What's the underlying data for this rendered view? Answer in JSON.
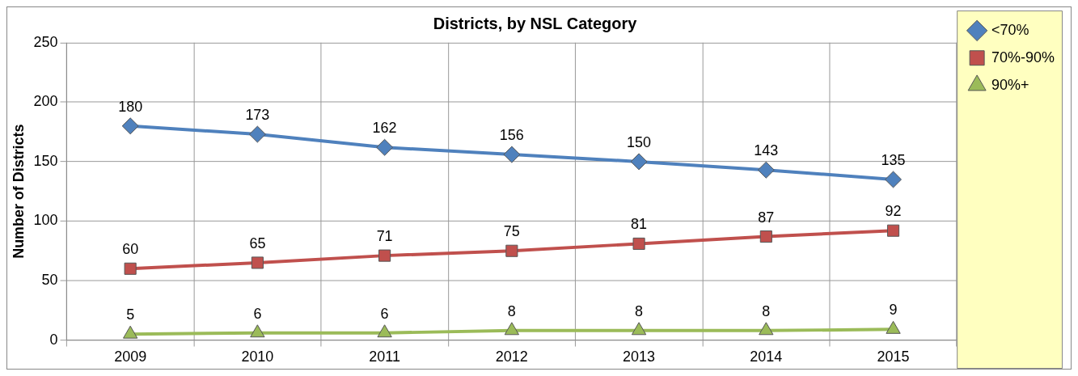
{
  "chart_data": {
    "type": "line",
    "title": "Districts, by NSL Category",
    "ylabel": "Number of Districts",
    "categories": [
      "2009",
      "2010",
      "2011",
      "2012",
      "2013",
      "2014",
      "2015"
    ],
    "series": [
      {
        "name": "<70%",
        "color": "#4f81bd",
        "marker": "diamond",
        "values": [
          180,
          173,
          162,
          156,
          150,
          143,
          135
        ]
      },
      {
        "name": "70%-90%",
        "color": "#c0504d",
        "marker": "square",
        "values": [
          60,
          65,
          71,
          75,
          81,
          87,
          92
        ]
      },
      {
        "name": "90%+",
        "color": "#9bbb59",
        "marker": "triangle",
        "values": [
          5,
          6,
          6,
          8,
          8,
          8,
          9
        ]
      }
    ],
    "ylim": [
      0,
      250
    ],
    "yticks": [
      0,
      50,
      100,
      150,
      200,
      250
    ],
    "grid": true,
    "legend": "top right",
    "data_labels": true
  }
}
